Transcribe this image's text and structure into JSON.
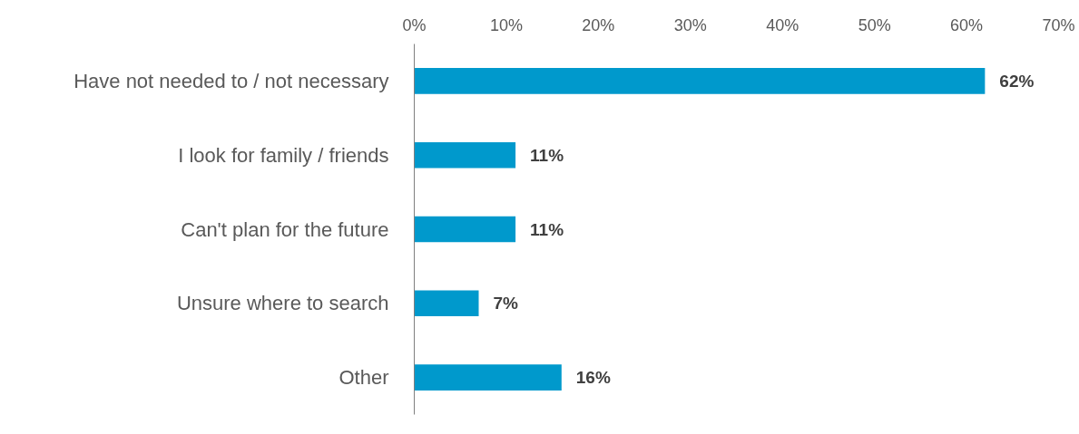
{
  "chart_data": {
    "type": "bar",
    "orientation": "horizontal",
    "categories": [
      "Have not needed to / not necessary",
      "I look for family / friends",
      "Can't plan for the future",
      "Unsure where to search",
      "Other"
    ],
    "values": [
      62,
      11,
      11,
      7,
      16
    ],
    "value_labels": [
      "62%",
      "11%",
      "11%",
      "7%",
      "16%"
    ],
    "color": "#0099cc",
    "xlim": [
      0,
      70
    ],
    "xticks": [
      {
        "value": 0,
        "label": "0%"
      },
      {
        "value": 10,
        "label": "10%"
      },
      {
        "value": 20,
        "label": "20%"
      },
      {
        "value": 30,
        "label": "30%"
      },
      {
        "value": 40,
        "label": "40%"
      },
      {
        "value": 50,
        "label": "50%"
      },
      {
        "value": 60,
        "label": "60%"
      },
      {
        "value": 70,
        "label": "70%"
      }
    ]
  }
}
